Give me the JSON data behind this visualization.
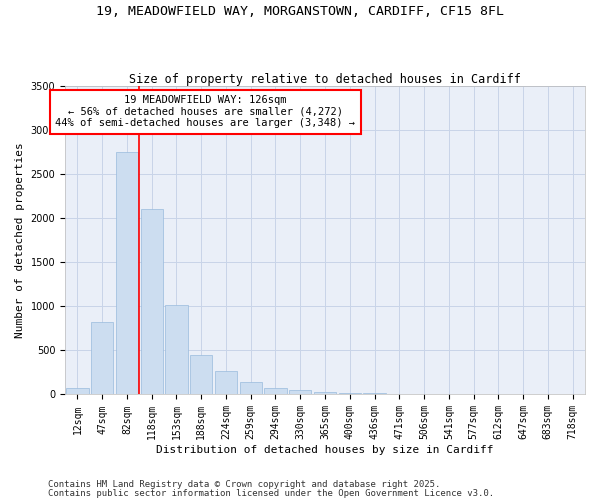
{
  "title1": "19, MEADOWFIELD WAY, MORGANSTOWN, CARDIFF, CF15 8FL",
  "title2": "Size of property relative to detached houses in Cardiff",
  "xlabel": "Distribution of detached houses by size in Cardiff",
  "ylabel": "Number of detached properties",
  "categories": [
    "12sqm",
    "47sqm",
    "82sqm",
    "118sqm",
    "153sqm",
    "188sqm",
    "224sqm",
    "259sqm",
    "294sqm",
    "330sqm",
    "365sqm",
    "400sqm",
    "436sqm",
    "471sqm",
    "506sqm",
    "541sqm",
    "577sqm",
    "612sqm",
    "647sqm",
    "683sqm",
    "718sqm"
  ],
  "values": [
    75,
    820,
    2750,
    2100,
    1020,
    450,
    270,
    145,
    75,
    50,
    30,
    20,
    15,
    8,
    5,
    3,
    2,
    1,
    0,
    0,
    0
  ],
  "bar_color": "#ccddf0",
  "bar_edgecolor": "#99bbdd",
  "vline_x_index": 2.5,
  "vline_color": "red",
  "annotation_text": "19 MEADOWFIELD WAY: 126sqm\n← 56% of detached houses are smaller (4,272)\n44% of semi-detached houses are larger (3,348) →",
  "annotation_box_color": "red",
  "annotation_fill": "white",
  "ylim": [
    0,
    3500
  ],
  "yticks": [
    0,
    500,
    1000,
    1500,
    2000,
    2500,
    3000,
    3500
  ],
  "grid_color": "#c8d4e8",
  "background_color": "#eaeff8",
  "footnote1": "Contains HM Land Registry data © Crown copyright and database right 2025.",
  "footnote2": "Contains public sector information licensed under the Open Government Licence v3.0.",
  "title_fontsize": 9.5,
  "subtitle_fontsize": 8.5,
  "axis_fontsize": 8,
  "tick_fontsize": 7,
  "annotation_fontsize": 7.5,
  "footnote_fontsize": 6.5
}
